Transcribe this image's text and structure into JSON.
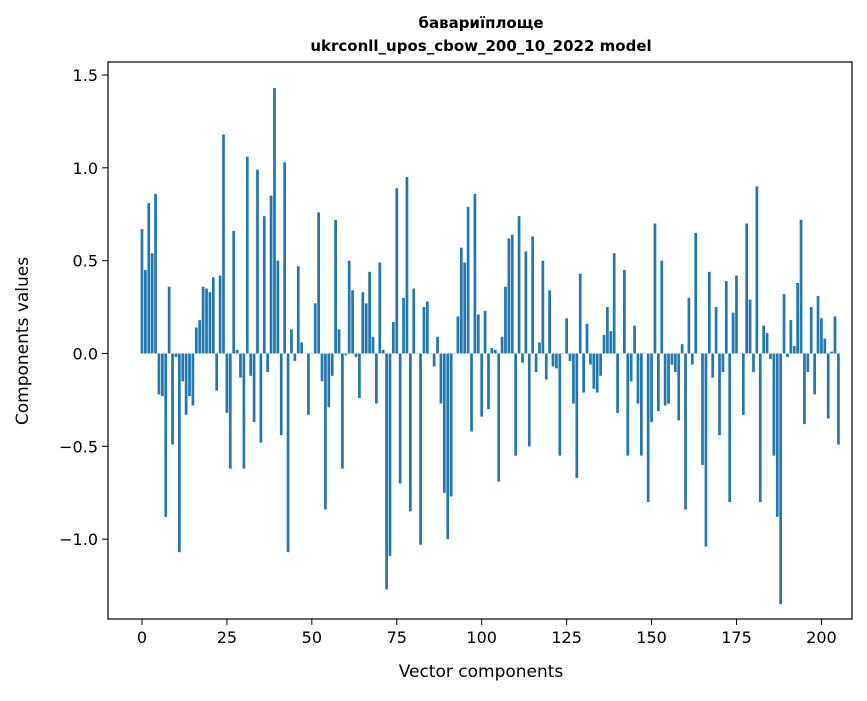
{
  "chart_data": {
    "type": "bar",
    "title_line1": "бавариїплоще",
    "title_line2": "ukrconll_upos_cbow_200_10_2022 model",
    "xlabel": "Vector components",
    "ylabel": "Components values",
    "xlim": [
      -10,
      209
    ],
    "ylim": [
      -1.43,
      1.57
    ],
    "bar_color": "#1f77b4",
    "xticks": [
      0,
      25,
      50,
      75,
      100,
      125,
      150,
      175,
      200
    ],
    "xtick_labels": [
      "0",
      "25",
      "50",
      "75",
      "100",
      "125",
      "150",
      "175",
      "200"
    ],
    "yticks": [
      -1.0,
      -0.5,
      0.0,
      0.5,
      1.0,
      1.5
    ],
    "ytick_labels": [
      "−1.0",
      "−0.5",
      "0.0",
      "0.5",
      "1.0",
      "1.5"
    ],
    "values": [
      0.67,
      0.45,
      0.81,
      0.54,
      0.86,
      -0.22,
      -0.23,
      -0.88,
      0.36,
      -0.49,
      -0.02,
      -1.07,
      -0.15,
      -0.33,
      -0.23,
      -0.28,
      0.14,
      0.18,
      0.36,
      0.35,
      0.33,
      0.41,
      -0.2,
      0.42,
      1.18,
      -0.32,
      -0.62,
      0.66,
      0.02,
      -0.13,
      -0.62,
      1.06,
      -0.12,
      -0.37,
      0.99,
      -0.48,
      0.74,
      -0.1,
      0.85,
      1.43,
      0.5,
      -0.44,
      1.03,
      -1.07,
      0.13,
      -0.04,
      0.47,
      0.06,
      0.0,
      -0.33,
      0.0,
      0.27,
      0.76,
      -0.15,
      -0.84,
      -0.29,
      -0.12,
      0.72,
      0.13,
      -0.62,
      -0.01,
      0.5,
      0.34,
      -0.02,
      -0.24,
      0.33,
      0.27,
      0.44,
      0.09,
      -0.27,
      0.49,
      0.02,
      -1.27,
      -1.09,
      0.17,
      0.89,
      -0.7,
      0.3,
      0.95,
      -0.85,
      0.35,
      0.0,
      -1.03,
      0.25,
      0.28,
      0.0,
      -0.07,
      0.09,
      -0.27,
      -0.75,
      -1.0,
      -0.77,
      0.0,
      0.2,
      0.57,
      0.49,
      0.79,
      -0.42,
      0.86,
      0.21,
      -0.34,
      0.23,
      -0.3,
      0.03,
      0.02,
      -0.69,
      0.09,
      0.36,
      0.62,
      0.64,
      -0.55,
      0.74,
      -0.05,
      0.55,
      -0.5,
      0.63,
      -0.1,
      0.06,
      0.5,
      -0.14,
      0.34,
      -0.07,
      -0.08,
      -0.55,
      0.0,
      0.19,
      -0.04,
      -0.27,
      -0.67,
      0.43,
      -0.21,
      0.16,
      -0.06,
      -0.19,
      -0.21,
      -0.12,
      0.1,
      0.25,
      0.12,
      0.54,
      -0.32,
      0.0,
      0.45,
      -0.55,
      -0.15,
      0.15,
      -0.27,
      -0.55,
      0.0,
      -0.8,
      -0.37,
      0.7,
      -0.31,
      0.5,
      -0.28,
      -0.27,
      -0.06,
      -0.1,
      -0.36,
      0.05,
      -0.84,
      0.3,
      -0.06,
      0.65,
      0.0,
      -0.6,
      -1.04,
      0.44,
      -0.13,
      0.25,
      -0.44,
      -0.1,
      0.39,
      -0.8,
      0.22,
      0.42,
      0.0,
      -0.33,
      0.7,
      0.29,
      -0.1,
      0.9,
      -0.8,
      0.15,
      0.11,
      -0.03,
      -0.55,
      -0.88,
      -1.35,
      0.32,
      -0.02,
      0.18,
      0.04,
      0.38,
      0.72,
      -0.38,
      -0.1,
      0.25,
      -0.22,
      0.31,
      0.19,
      0.08,
      -0.35,
      0.01,
      0.2,
      -0.49
    ]
  }
}
